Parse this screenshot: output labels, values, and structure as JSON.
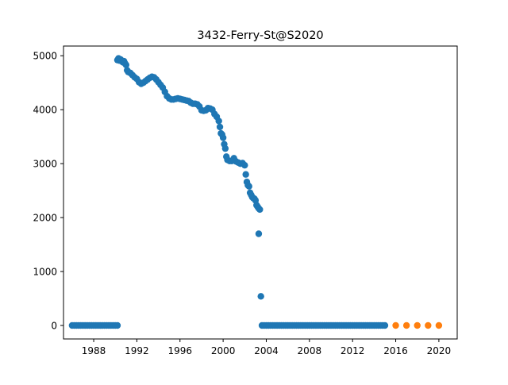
{
  "chart_data": {
    "type": "scatter",
    "title": "3432-Ferry-St@S2020",
    "xlabel": "",
    "ylabel": "",
    "xlim": [
      1985.2,
      2021.7
    ],
    "ylim": [
      -250,
      5180
    ],
    "x_ticks": [
      1988,
      1992,
      1996,
      2000,
      2004,
      2008,
      2012,
      2016,
      2020
    ],
    "y_ticks": [
      0,
      1000,
      2000,
      3000,
      4000,
      5000
    ],
    "grid": false,
    "legend": "none",
    "series": [
      {
        "color": "#1f77b4",
        "points": [
          [
            1986.0,
            0
          ],
          [
            1986.2,
            0
          ],
          [
            1986.4,
            0
          ],
          [
            1986.6,
            0
          ],
          [
            1986.8,
            0
          ],
          [
            1987.0,
            0
          ],
          [
            1987.2,
            0
          ],
          [
            1987.4,
            0
          ],
          [
            1987.6,
            0
          ],
          [
            1987.8,
            0
          ],
          [
            1988.0,
            0
          ],
          [
            1988.2,
            0
          ],
          [
            1988.4,
            0
          ],
          [
            1988.6,
            0
          ],
          [
            1988.8,
            0
          ],
          [
            1989.0,
            0
          ],
          [
            1989.2,
            0
          ],
          [
            1989.4,
            0
          ],
          [
            1989.6,
            0
          ],
          [
            1989.8,
            0
          ],
          [
            1990.0,
            0
          ],
          [
            1990.2,
            0
          ],
          [
            1990.2,
            4920
          ],
          [
            1990.3,
            4950
          ],
          [
            1990.4,
            4910
          ],
          [
            1990.5,
            4930
          ],
          [
            1990.6,
            4900
          ],
          [
            1990.7,
            4880
          ],
          [
            1990.8,
            4900
          ],
          [
            1990.9,
            4860
          ],
          [
            1991.0,
            4830
          ],
          [
            1991.1,
            4730
          ],
          [
            1991.2,
            4700
          ],
          [
            1991.4,
            4680
          ],
          [
            1991.6,
            4640
          ],
          [
            1991.8,
            4600
          ],
          [
            1992.0,
            4570
          ],
          [
            1992.2,
            4510
          ],
          [
            1992.4,
            4480
          ],
          [
            1992.6,
            4500
          ],
          [
            1992.8,
            4530
          ],
          [
            1993.0,
            4560
          ],
          [
            1993.2,
            4590
          ],
          [
            1993.4,
            4610
          ],
          [
            1993.6,
            4600
          ],
          [
            1993.8,
            4560
          ],
          [
            1994.0,
            4510
          ],
          [
            1994.2,
            4460
          ],
          [
            1994.4,
            4410
          ],
          [
            1994.6,
            4330
          ],
          [
            1994.8,
            4250
          ],
          [
            1995.0,
            4210
          ],
          [
            1995.2,
            4190
          ],
          [
            1995.4,
            4190
          ],
          [
            1995.6,
            4200
          ],
          [
            1995.8,
            4210
          ],
          [
            1996.0,
            4200
          ],
          [
            1996.2,
            4190
          ],
          [
            1996.4,
            4180
          ],
          [
            1996.6,
            4170
          ],
          [
            1996.8,
            4160
          ],
          [
            1997.0,
            4130
          ],
          [
            1997.2,
            4110
          ],
          [
            1997.4,
            4110
          ],
          [
            1997.6,
            4100
          ],
          [
            1997.8,
            4060
          ],
          [
            1998.0,
            3990
          ],
          [
            1998.2,
            3980
          ],
          [
            1998.4,
            3990
          ],
          [
            1998.6,
            4030
          ],
          [
            1998.8,
            4020
          ],
          [
            1999.0,
            4000
          ],
          [
            1999.2,
            3920
          ],
          [
            1999.4,
            3870
          ],
          [
            1999.6,
            3790
          ],
          [
            1999.7,
            3680
          ],
          [
            1999.8,
            3560
          ],
          [
            1999.9,
            3540
          ],
          [
            2000.0,
            3480
          ],
          [
            2000.1,
            3360
          ],
          [
            2000.2,
            3280
          ],
          [
            2000.3,
            3130
          ],
          [
            2000.4,
            3070
          ],
          [
            2000.6,
            3050
          ],
          [
            2000.8,
            3050
          ],
          [
            2001.0,
            3100
          ],
          [
            2001.2,
            3040
          ],
          [
            2001.4,
            3020
          ],
          [
            2001.6,
            3000
          ],
          [
            2001.8,
            3010
          ],
          [
            2002.0,
            2970
          ],
          [
            2002.1,
            2800
          ],
          [
            2002.2,
            2660
          ],
          [
            2002.3,
            2600
          ],
          [
            2002.4,
            2580
          ],
          [
            2002.5,
            2460
          ],
          [
            2002.6,
            2420
          ],
          [
            2002.7,
            2380
          ],
          [
            2002.8,
            2360
          ],
          [
            2002.9,
            2350
          ],
          [
            2003.0,
            2320
          ],
          [
            2003.1,
            2230
          ],
          [
            2003.2,
            2200
          ],
          [
            2003.3,
            2170
          ],
          [
            2003.4,
            2150
          ],
          [
            2003.3,
            1700
          ],
          [
            2003.5,
            540
          ],
          [
            2003.6,
            0
          ],
          [
            2003.8,
            0
          ],
          [
            2004.0,
            0
          ],
          [
            2004.2,
            0
          ],
          [
            2004.4,
            0
          ],
          [
            2004.6,
            0
          ],
          [
            2004.8,
            0
          ],
          [
            2005.0,
            0
          ],
          [
            2005.2,
            0
          ],
          [
            2005.4,
            0
          ],
          [
            2005.6,
            0
          ],
          [
            2005.8,
            0
          ],
          [
            2006.0,
            0
          ],
          [
            2006.2,
            0
          ],
          [
            2006.4,
            0
          ],
          [
            2006.6,
            0
          ],
          [
            2006.8,
            0
          ],
          [
            2007.0,
            0
          ],
          [
            2007.2,
            0
          ],
          [
            2007.4,
            0
          ],
          [
            2007.6,
            0
          ],
          [
            2007.8,
            0
          ],
          [
            2008.0,
            0
          ],
          [
            2008.2,
            0
          ],
          [
            2008.4,
            0
          ],
          [
            2008.6,
            0
          ],
          [
            2008.8,
            0
          ],
          [
            2009.0,
            0
          ],
          [
            2009.2,
            0
          ],
          [
            2009.4,
            0
          ],
          [
            2009.6,
            0
          ],
          [
            2009.8,
            0
          ],
          [
            2010.0,
            0
          ],
          [
            2010.2,
            0
          ],
          [
            2010.4,
            0
          ],
          [
            2010.6,
            0
          ],
          [
            2010.8,
            0
          ],
          [
            2011.0,
            0
          ],
          [
            2011.2,
            0
          ],
          [
            2011.4,
            0
          ],
          [
            2011.6,
            0
          ],
          [
            2011.8,
            0
          ],
          [
            2012.0,
            0
          ],
          [
            2012.2,
            0
          ],
          [
            2012.4,
            0
          ],
          [
            2012.6,
            0
          ],
          [
            2012.8,
            0
          ],
          [
            2013.0,
            0
          ],
          [
            2013.2,
            0
          ],
          [
            2013.4,
            0
          ],
          [
            2013.6,
            0
          ],
          [
            2013.8,
            0
          ],
          [
            2014.0,
            0
          ],
          [
            2014.2,
            0
          ],
          [
            2014.4,
            0
          ],
          [
            2014.6,
            0
          ],
          [
            2014.8,
            0
          ],
          [
            2015.0,
            0
          ]
        ]
      },
      {
        "color": "#ff7f0e",
        "points": [
          [
            2016.0,
            0
          ],
          [
            2017.0,
            0
          ],
          [
            2018.0,
            0
          ],
          [
            2019.0,
            0
          ],
          [
            2020.0,
            0
          ]
        ]
      }
    ]
  }
}
